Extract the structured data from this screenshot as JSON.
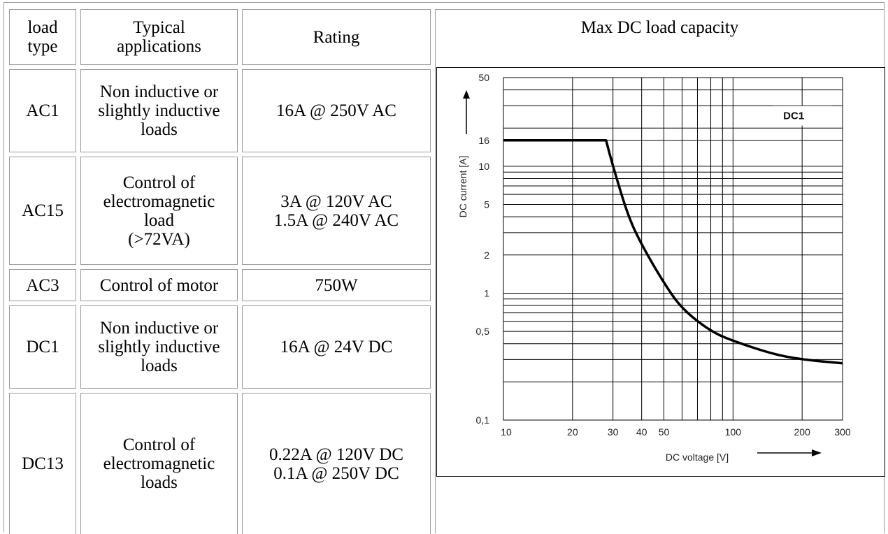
{
  "table": {
    "headers": [
      {
        "key": "load_type",
        "text": "load\ntype"
      },
      {
        "key": "typical_applications",
        "text": "Typical\napplications"
      },
      {
        "key": "rating",
        "text": "Rating"
      },
      {
        "key": "max_dc",
        "text": "Max DC load capacity"
      }
    ],
    "rows": [
      {
        "load_type": "AC1",
        "application": "Non inductive or\nslightly inductive\nloads",
        "rating": "16A @ 250V AC"
      },
      {
        "load_type": "AC15",
        "application": "Control of\nelectromagnetic\nload\n(>72VA)",
        "rating": "3A @ 120V AC\n1.5A @ 240V AC"
      },
      {
        "load_type": "AC3",
        "application": "Control of motor",
        "rating": "750W"
      },
      {
        "load_type": "DC1",
        "application": "Non inductive or\nslightly inductive\nloads",
        "rating": "16A @ 24V DC"
      },
      {
        "load_type": "DC13",
        "application": "Control of\nelectromagnetic\nloads",
        "rating": "0.22A @ 120V DC\n0.1A @ 250V DC"
      }
    ]
  },
  "chart_data": {
    "type": "line",
    "title": "",
    "xlabel": "DC voltage [V]",
    "ylabel": "DC current [A]",
    "x_scale": "log",
    "y_scale": "log",
    "xlim": [
      10,
      300
    ],
    "ylim": [
      0.1,
      50
    ],
    "x_ticks": [
      10,
      20,
      30,
      40,
      50,
      100,
      200,
      300
    ],
    "x_tick_labels": [
      "10",
      "20",
      "30",
      "40",
      "50",
      "100",
      "200",
      "300"
    ],
    "y_ticks": [
      0.1,
      0.5,
      1,
      2,
      5,
      10,
      16,
      50
    ],
    "y_tick_labels": [
      "0,1",
      "0,5",
      "1",
      "2",
      "5",
      "10",
      "16",
      "50"
    ],
    "grid": true,
    "series": [
      {
        "name": "DC1",
        "x": [
          10,
          28,
          30,
          35,
          40,
          50,
          60,
          80,
          100,
          150,
          200,
          300
        ],
        "y": [
          16,
          16,
          10,
          4,
          2.4,
          1.2,
          0.75,
          0.5,
          0.42,
          0.33,
          0.3,
          0.28
        ]
      }
    ],
    "annotations": [
      {
        "text": "DC1"
      }
    ]
  }
}
